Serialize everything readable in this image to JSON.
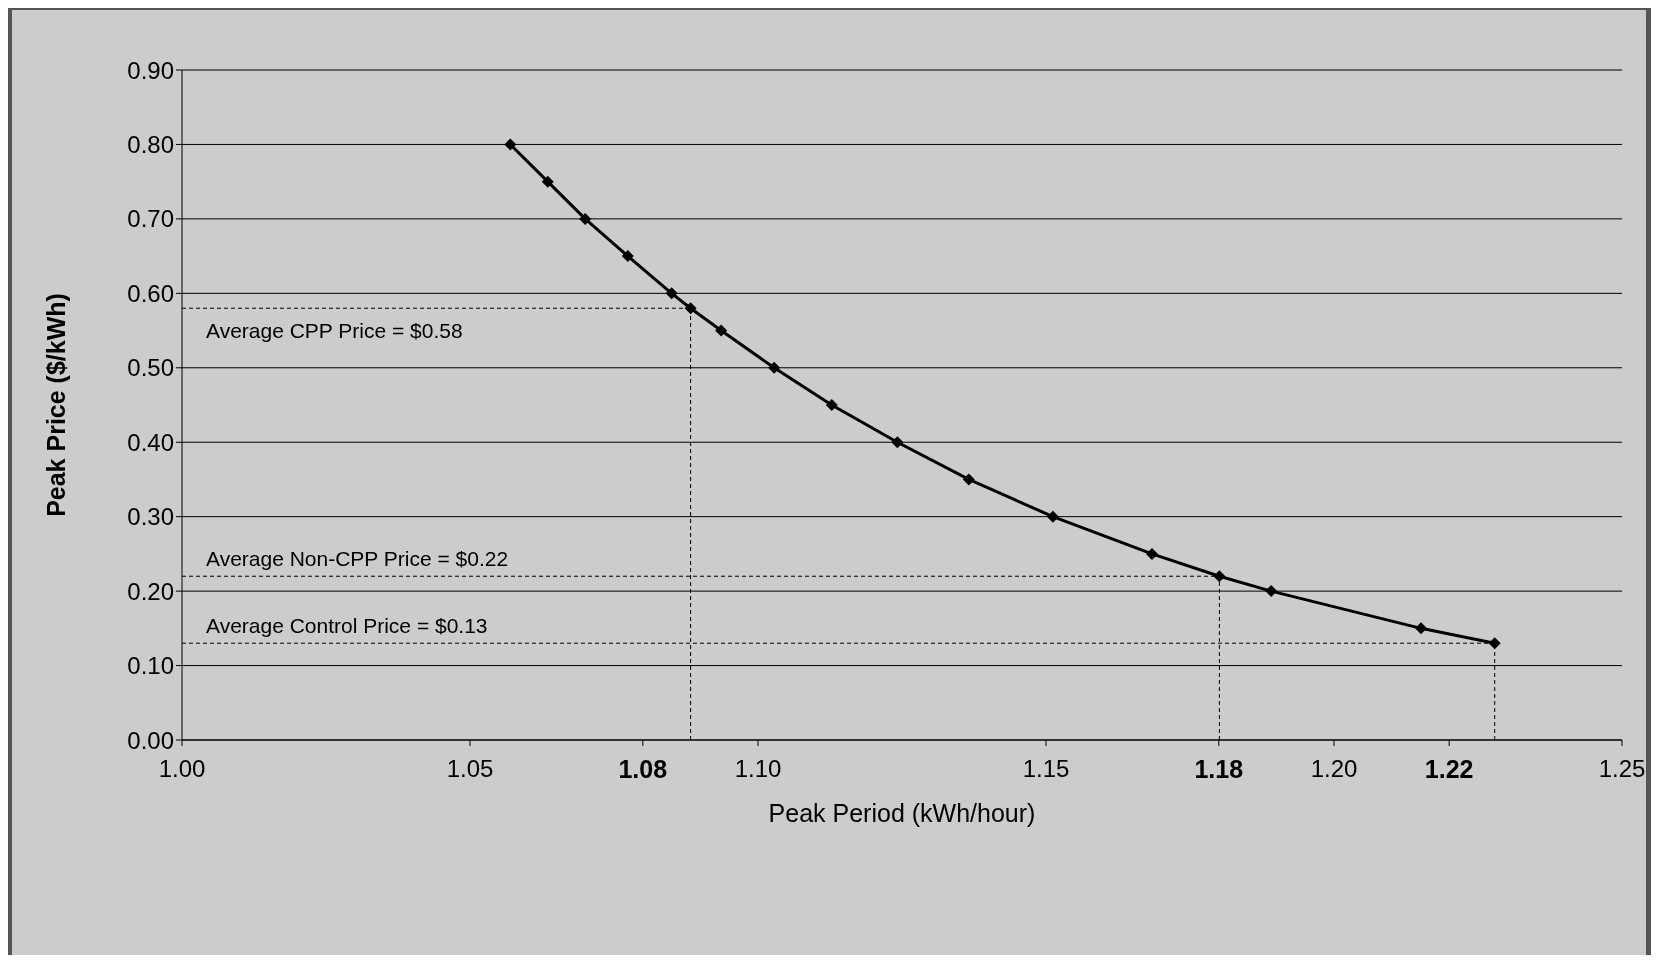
{
  "chart_data": {
    "type": "line",
    "xlabel": "Peak Period (kWh/hour)",
    "ylabel": "Peak Price ($/kWh)",
    "x": [
      1.057,
      1.0635,
      1.07,
      1.0774,
      1.085,
      1.0883,
      1.0936,
      1.1028,
      1.1128,
      1.1242,
      1.1366,
      1.1512,
      1.1684,
      1.1801,
      1.1891,
      1.2151,
      1.2279
    ],
    "series": [
      {
        "color": "#000000",
        "values": [
          0.8,
          0.75,
          0.7,
          0.65,
          0.6,
          0.58,
          0.55,
          0.5,
          0.45,
          0.4,
          0.35,
          0.3,
          0.25,
          0.22,
          0.2,
          0.15,
          0.13
        ]
      }
    ],
    "xlim": [
      1.0,
      1.25
    ],
    "xticks": [
      {
        "value": 1.0,
        "label": "1.00"
      },
      1.05,
      1.08,
      {
        "value": 1.1,
        "label": "1.10"
      },
      1.15,
      1.18,
      {
        "value": 1.2,
        "label": "1.20"
      },
      1.22,
      1.25
    ],
    "ylim": [
      0,
      0.9
    ],
    "yticks": [
      {
        "value": 0,
        "label": "0.00"
      },
      {
        "value": 0.1,
        "label": "0.10"
      },
      {
        "value": 0.2,
        "label": "0.20"
      },
      {
        "value": 0.3,
        "label": "0.30"
      },
      {
        "value": 0.4,
        "label": "0.40"
      },
      {
        "value": 0.5,
        "label": "0.50"
      },
      {
        "value": 0.6,
        "label": "0.60"
      },
      {
        "value": 0.7,
        "label": "0.70"
      },
      {
        "value": 0.8,
        "label": "0.80"
      },
      {
        "value": 0.9,
        "label": "0.90"
      }
    ],
    "grid": "y",
    "marker": "diamond",
    "line_style": "solid",
    "legend": false,
    "ref_lines": [
      {
        "axis": "y",
        "value": 0.58,
        "label": "Average CPP Price = $0.58",
        "line_style": "dashed"
      },
      {
        "axis": "y",
        "value": 0.22,
        "label": "Average Non-CPP Price = $0.22",
        "line_style": "dashed"
      },
      {
        "axis": "y",
        "value": 0.13,
        "label": "Average Control Price = $0.13",
        "line_style": "dashed"
      },
      {
        "axis": "x",
        "value": 1.0883,
        "line_style": "dashed"
      },
      {
        "axis": "x",
        "value": 1.1801,
        "line_style": "dashed"
      },
      {
        "axis": "x",
        "value": 1.2279,
        "line_style": "dashed"
      }
    ]
  }
}
